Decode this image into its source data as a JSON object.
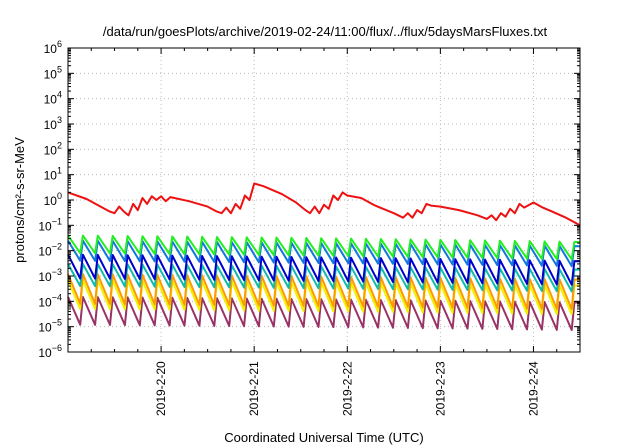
{
  "chart_data": {
    "type": "line",
    "title": "/data/run/goesPlots/archive/2019-02-24/11:00/flux/../flux/5daysMarsFluxes.txt",
    "xlabel": "Coordinated Universal Time (UTC)",
    "ylabel": "protons/cm²-s-sr-MeV",
    "yscale": "log",
    "ylim": [
      1e-06,
      1000000.0
    ],
    "xlim": [
      0,
      5.5
    ],
    "grid": true,
    "x_ticks": [
      {
        "x": 1,
        "label": "2019-2-20"
      },
      {
        "x": 2,
        "label": "2019-2-21"
      },
      {
        "x": 3,
        "label": "2019-2-22"
      },
      {
        "x": 4,
        "label": "2019-2-23"
      },
      {
        "x": 5,
        "label": "2019-2-24"
      }
    ],
    "y_ticks": [
      -6,
      -5,
      -4,
      -3,
      -2,
      -1,
      0,
      1,
      2,
      3,
      4,
      5,
      6
    ],
    "series": [
      {
        "color": "#ee1111",
        "points": [
          [
            0,
            2.0
          ],
          [
            0.2,
            1.1
          ],
          [
            0.35,
            0.55
          ],
          [
            0.45,
            0.35
          ],
          [
            0.5,
            0.3
          ],
          [
            0.55,
            0.55
          ],
          [
            0.6,
            0.35
          ],
          [
            0.65,
            0.25
          ],
          [
            0.7,
            0.7
          ],
          [
            0.75,
            0.4
          ],
          [
            0.8,
            1.2
          ],
          [
            0.85,
            0.7
          ],
          [
            0.9,
            1.4
          ],
          [
            0.95,
            1.0
          ],
          [
            1.0,
            1.4
          ],
          [
            1.05,
            0.9
          ],
          [
            1.1,
            1.3
          ],
          [
            1.3,
            0.9
          ],
          [
            1.5,
            0.55
          ],
          [
            1.6,
            0.35
          ],
          [
            1.65,
            0.3
          ],
          [
            1.7,
            0.5
          ],
          [
            1.75,
            0.3
          ],
          [
            1.8,
            0.7
          ],
          [
            1.85,
            0.45
          ],
          [
            1.9,
            1.5
          ],
          [
            1.95,
            1.0
          ],
          [
            2.0,
            4.5
          ],
          [
            2.1,
            3.5
          ],
          [
            2.3,
            1.7
          ],
          [
            2.45,
            0.8
          ],
          [
            2.55,
            0.4
          ],
          [
            2.6,
            0.3
          ],
          [
            2.65,
            0.55
          ],
          [
            2.7,
            0.3
          ],
          [
            2.75,
            0.65
          ],
          [
            2.8,
            0.45
          ],
          [
            2.85,
            1.5
          ],
          [
            2.9,
            1.0
          ],
          [
            2.95,
            2.0
          ],
          [
            3.0,
            1.5
          ],
          [
            3.15,
            1.2
          ],
          [
            3.3,
            0.6
          ],
          [
            3.5,
            0.3
          ],
          [
            3.6,
            0.2
          ],
          [
            3.65,
            0.3
          ],
          [
            3.7,
            0.2
          ],
          [
            3.75,
            0.4
          ],
          [
            3.8,
            0.3
          ],
          [
            3.85,
            0.7
          ],
          [
            3.9,
            0.6
          ],
          [
            4.0,
            0.55
          ],
          [
            4.2,
            0.4
          ],
          [
            4.4,
            0.25
          ],
          [
            4.5,
            0.18
          ],
          [
            4.55,
            0.25
          ],
          [
            4.6,
            0.16
          ],
          [
            4.65,
            0.3
          ],
          [
            4.7,
            0.22
          ],
          [
            4.75,
            0.45
          ],
          [
            4.8,
            0.3
          ],
          [
            4.85,
            0.7
          ],
          [
            4.9,
            0.5
          ],
          [
            5.0,
            0.8
          ],
          [
            5.1,
            0.5
          ],
          [
            5.2,
            0.35
          ],
          [
            5.35,
            0.2
          ],
          [
            5.5,
            0.1
          ]
        ]
      },
      {
        "color": "#22ee22",
        "profile": {
          "base": 0.008,
          "peak": 0.04,
          "period": 0.16,
          "decay_fraction": 0.82,
          "end_scale": 0.55
        }
      },
      {
        "color": "#1177dd",
        "profile": {
          "base": 0.004,
          "peak": 0.025,
          "period": 0.16,
          "decay_fraction": 0.82,
          "end_scale": 0.6
        }
      },
      {
        "color": "#0000cc",
        "profile": {
          "base": 0.0008,
          "peak": 0.007,
          "period": 0.16,
          "decay_fraction": 0.82,
          "end_scale": 0.55
        }
      },
      {
        "color": "#11bbaa",
        "profile": {
          "base": 0.0004,
          "peak": 0.003,
          "period": 0.16,
          "decay_fraction": 0.82,
          "end_scale": 0.6
        }
      },
      {
        "color": "#ff9900",
        "profile": {
          "base": 8e-05,
          "peak": 0.0012,
          "period": 0.16,
          "decay_fraction": 0.82,
          "end_scale": 0.6
        }
      },
      {
        "color": "#f0f000",
        "profile": {
          "base": 5e-05,
          "peak": 0.0007,
          "period": 0.16,
          "decay_fraction": 0.82,
          "end_scale": 0.6
        }
      },
      {
        "color": "#993366",
        "profile": {
          "base": 1.2e-05,
          "peak": 0.00015,
          "period": 0.16,
          "decay_fraction": 0.82,
          "end_scale": 0.6
        }
      }
    ]
  }
}
